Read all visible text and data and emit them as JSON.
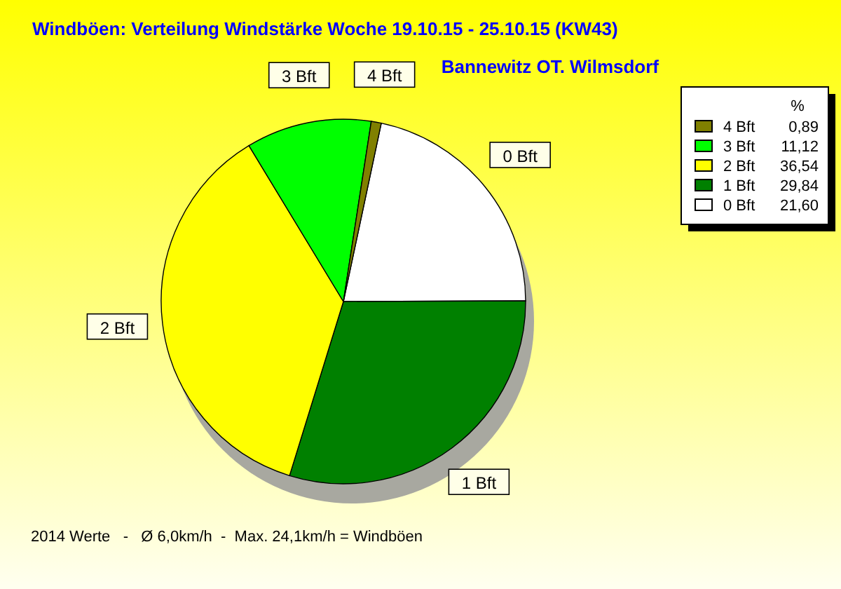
{
  "chart_data": {
    "type": "pie",
    "title": "Windböen: Verteilung Windstärke  Woche 19.10.15 - 25.10.15 (KW43)",
    "subtitle": "Bannewitz OT. Wilmsdorf",
    "legend_title": "%",
    "categories": [
      "0 Bft",
      "1 Bft",
      "2 Bft",
      "3 Bft",
      "4 Bft"
    ],
    "values": [
      21.6,
      29.84,
      36.54,
      11.12,
      0.89
    ],
    "value_labels": [
      "21,60",
      "29,84",
      "36,54",
      "11,12",
      "0,89"
    ],
    "colors": [
      "#ffffff",
      "#008000",
      "#ffff00",
      "#00ff00",
      "#808000"
    ],
    "legend": "right",
    "annotations": [
      "2014 Werte   -   Ø 6,0km/h  -  Max. 24,1km/h = Windböen"
    ]
  }
}
